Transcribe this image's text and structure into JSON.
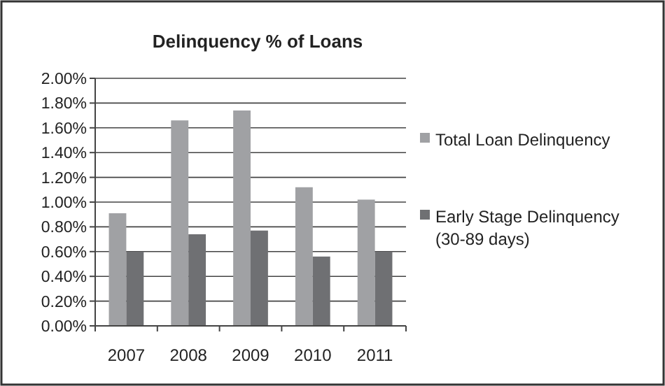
{
  "chart_data": {
    "type": "bar",
    "title": "Delinquency % of Loans",
    "categories": [
      "2007",
      "2008",
      "2009",
      "2010",
      "2011"
    ],
    "series": [
      {
        "name": "Total Loan Delinquency",
        "color": "#a0a1a4",
        "values": [
          0.91,
          1.66,
          1.74,
          1.12,
          1.02
        ]
      },
      {
        "name": "Early Stage Delinquency (30-89 days)",
        "color": "#6f7073",
        "values": [
          0.6,
          0.74,
          0.77,
          0.56,
          0.6
        ]
      }
    ],
    "ylim": [
      0,
      2
    ],
    "yticks": [
      {
        "value": 0,
        "label": "0.00%"
      },
      {
        "value": 0.2,
        "label": "0.20%"
      },
      {
        "value": 0.4,
        "label": "0.40%"
      },
      {
        "value": 0.6,
        "label": "0.60%"
      },
      {
        "value": 0.8,
        "label": "0.80%"
      },
      {
        "value": 1,
        "label": "1.00%"
      },
      {
        "value": 1.2,
        "label": "1.20%"
      },
      {
        "value": 1.4,
        "label": "1.40%"
      },
      {
        "value": 1.6,
        "label": "1.60%"
      },
      {
        "value": 1.8,
        "label": "1.80%"
      },
      {
        "value": 2,
        "label": "2.00%"
      }
    ],
    "grid": "y",
    "legend": "right"
  }
}
